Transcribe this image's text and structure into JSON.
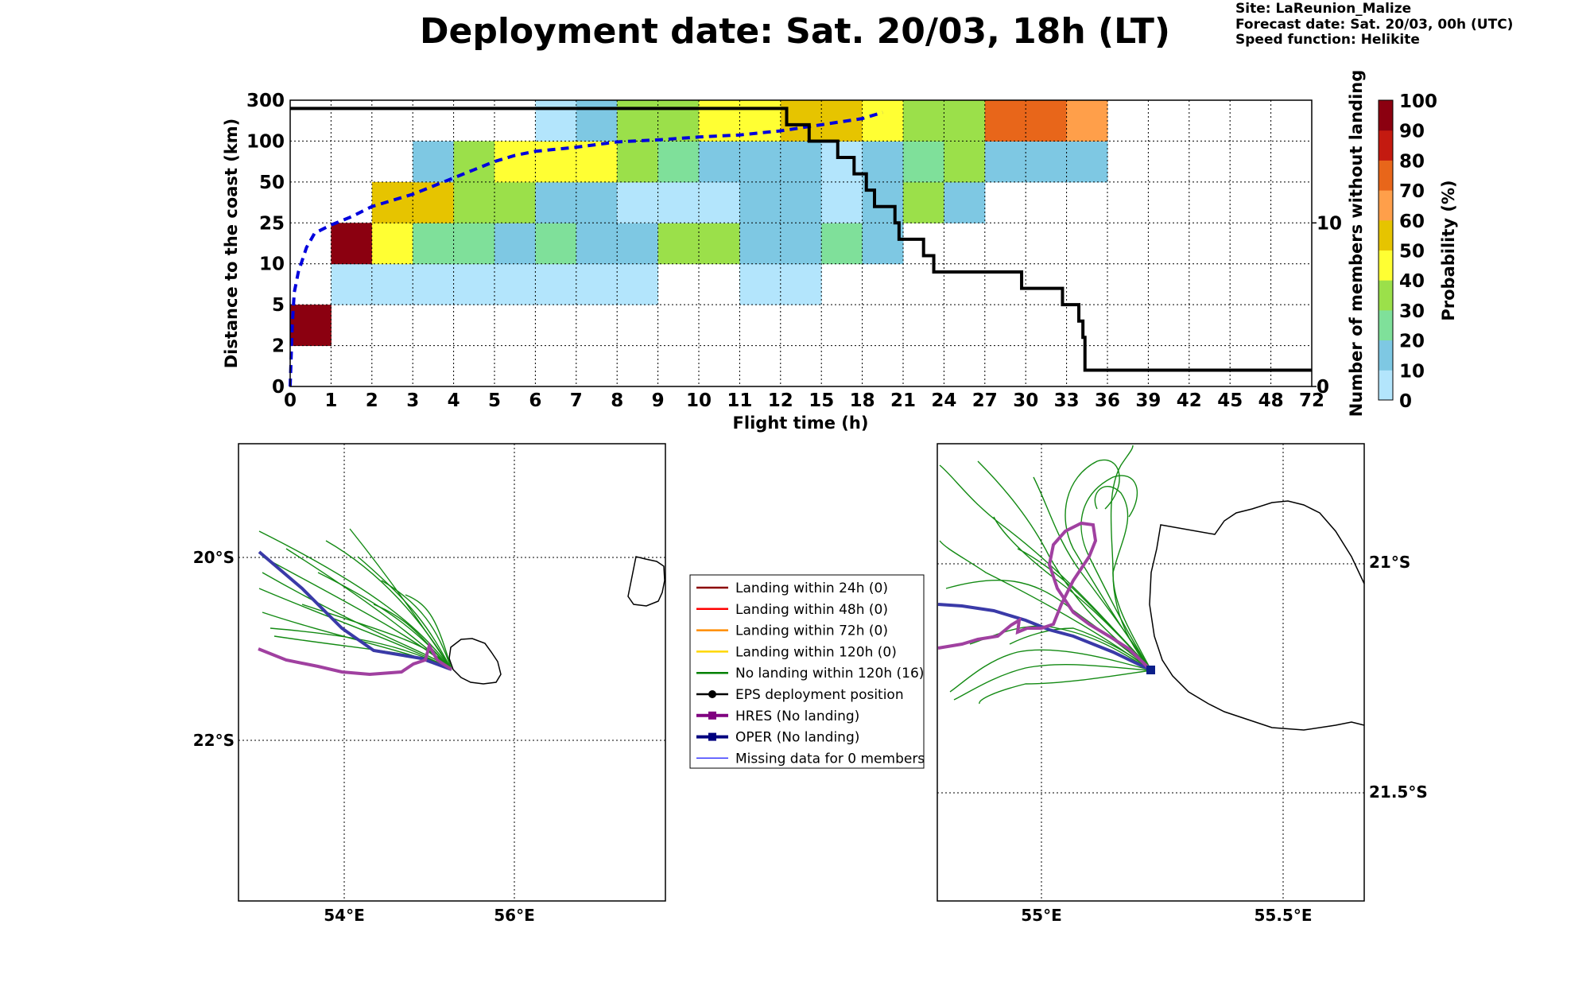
{
  "header": {
    "title": "Deployment date: Sat. 20/03, 18h (LT)",
    "site": "Site: LaReunion_Malize",
    "forecast": "Forecast date: Sat. 20/03, 00h (UTC)",
    "speed": "Speed function: Helikite"
  },
  "chart_data": [
    {
      "type": "heatmap",
      "xlabel": "Flight time (h)",
      "ylabel": "Distance to the coast (km)",
      "y2label": "Number of members without landing",
      "x_ticks": [
        "0",
        "1",
        "2",
        "3",
        "4",
        "5",
        "6",
        "7",
        "8",
        "9",
        "10",
        "11",
        "12",
        "15",
        "18",
        "21",
        "24",
        "27",
        "30",
        "33",
        "36",
        "39",
        "42",
        "45",
        "48",
        "72"
      ],
      "y_ticks": [
        "0",
        "2",
        "5",
        "10",
        "25",
        "50",
        "100",
        "300"
      ],
      "y2_ticks": [
        "0",
        "10"
      ],
      "grid": true,
      "colorbar": {
        "label": "Probability (%)",
        "ticks": [
          "0",
          "10",
          "20",
          "30",
          "40",
          "50",
          "60",
          "70",
          "80",
          "90",
          "100"
        ],
        "colors": [
          "#b3e5fc",
          "#7ec8e3",
          "#7fe09a",
          "#9be04a",
          "#ffff33",
          "#e6c400",
          "#ff9f4a",
          "#e8661a",
          "#c41a10",
          "#8b0010"
        ]
      },
      "cells": [
        {
          "x": 0,
          "y": 1,
          "p": 100
        },
        {
          "x": 1,
          "y": 2,
          "p": 5
        },
        {
          "x": 2,
          "y": 2,
          "p": 5
        },
        {
          "x": 3,
          "y": 2,
          "p": 5
        },
        {
          "x": 4,
          "y": 2,
          "p": 5
        },
        {
          "x": 5,
          "y": 2,
          "p": 5
        },
        {
          "x": 6,
          "y": 2,
          "p": 5
        },
        {
          "x": 7,
          "y": 2,
          "p": 5
        },
        {
          "x": 8,
          "y": 2,
          "p": 5
        },
        {
          "x": 11,
          "y": 2,
          "p": 5
        },
        {
          "x": 12,
          "y": 2,
          "p": 5
        },
        {
          "x": 1,
          "y": 3,
          "p": 100
        },
        {
          "x": 2,
          "y": 3,
          "p": 45
        },
        {
          "x": 3,
          "y": 3,
          "p": 25
        },
        {
          "x": 4,
          "y": 3,
          "p": 25
        },
        {
          "x": 5,
          "y": 3,
          "p": 15
        },
        {
          "x": 6,
          "y": 3,
          "p": 25
        },
        {
          "x": 7,
          "y": 3,
          "p": 15
        },
        {
          "x": 8,
          "y": 3,
          "p": 15
        },
        {
          "x": 9,
          "y": 3,
          "p": 35
        },
        {
          "x": 10,
          "y": 3,
          "p": 35
        },
        {
          "x": 11,
          "y": 3,
          "p": 15
        },
        {
          "x": 12,
          "y": 3,
          "p": 15
        },
        {
          "x": 13,
          "y": 3,
          "p": 25
        },
        {
          "x": 14,
          "y": 3,
          "p": 15
        },
        {
          "x": 2,
          "y": 4,
          "p": 55
        },
        {
          "x": 3,
          "y": 4,
          "p": 55
        },
        {
          "x": 4,
          "y": 4,
          "p": 35
        },
        {
          "x": 5,
          "y": 4,
          "p": 35
        },
        {
          "x": 6,
          "y": 4,
          "p": 15
        },
        {
          "x": 7,
          "y": 4,
          "p": 15
        },
        {
          "x": 8,
          "y": 4,
          "p": 5
        },
        {
          "x": 9,
          "y": 4,
          "p": 5
        },
        {
          "x": 10,
          "y": 4,
          "p": 5
        },
        {
          "x": 11,
          "y": 4,
          "p": 15
        },
        {
          "x": 12,
          "y": 4,
          "p": 15
        },
        {
          "x": 13,
          "y": 4,
          "p": 5
        },
        {
          "x": 14,
          "y": 4,
          "p": 15
        },
        {
          "x": 15,
          "y": 4,
          "p": 35
        },
        {
          "x": 16,
          "y": 4,
          "p": 15
        },
        {
          "x": 3,
          "y": 5,
          "p": 15
        },
        {
          "x": 4,
          "y": 5,
          "p": 35
        },
        {
          "x": 5,
          "y": 5,
          "p": 45
        },
        {
          "x": 6,
          "y": 5,
          "p": 45
        },
        {
          "x": 7,
          "y": 5,
          "p": 45
        },
        {
          "x": 8,
          "y": 5,
          "p": 35
        },
        {
          "x": 9,
          "y": 5,
          "p": 25
        },
        {
          "x": 10,
          "y": 5,
          "p": 15
        },
        {
          "x": 11,
          "y": 5,
          "p": 15
        },
        {
          "x": 12,
          "y": 5,
          "p": 15
        },
        {
          "x": 13,
          "y": 5,
          "p": 5
        },
        {
          "x": 14,
          "y": 5,
          "p": 15
        },
        {
          "x": 15,
          "y": 5,
          "p": 25
        },
        {
          "x": 16,
          "y": 5,
          "p": 35
        },
        {
          "x": 17,
          "y": 5,
          "p": 15
        },
        {
          "x": 18,
          "y": 5,
          "p": 15
        },
        {
          "x": 19,
          "y": 5,
          "p": 15
        },
        {
          "x": 6,
          "y": 6,
          "p": 5
        },
        {
          "x": 7,
          "y": 6,
          "p": 15
        },
        {
          "x": 8,
          "y": 6,
          "p": 35
        },
        {
          "x": 9,
          "y": 6,
          "p": 35
        },
        {
          "x": 10,
          "y": 6,
          "p": 45
        },
        {
          "x": 11,
          "y": 6,
          "p": 45
        },
        {
          "x": 12,
          "y": 6,
          "p": 55
        },
        {
          "x": 13,
          "y": 6,
          "p": 55
        },
        {
          "x": 14,
          "y": 6,
          "p": 45
        },
        {
          "x": 15,
          "y": 6,
          "p": 35
        },
        {
          "x": 16,
          "y": 6,
          "p": 35
        },
        {
          "x": 17,
          "y": 6,
          "p": 75
        },
        {
          "x": 18,
          "y": 6,
          "p": 75
        },
        {
          "x": 19,
          "y": 6,
          "p": 65
        }
      ],
      "series": [
        {
          "name": "median distance",
          "style": "blue dashed",
          "points": [
            [
              0,
              0
            ],
            [
              0.05,
              1.5
            ],
            [
              0.1,
              2.3
            ],
            [
              0.2,
              2.8
            ],
            [
              0.4,
              3.4
            ],
            [
              0.6,
              3.75
            ],
            [
              1.0,
              3.95
            ],
            [
              1.5,
              4.15
            ],
            [
              2.0,
              4.4
            ],
            [
              2.5,
              4.55
            ],
            [
              3.0,
              4.7
            ],
            [
              3.5,
              4.9
            ],
            [
              4.0,
              5.1
            ],
            [
              4.5,
              5.3
            ],
            [
              5.0,
              5.5
            ],
            [
              5.5,
              5.65
            ],
            [
              6.0,
              5.75
            ],
            [
              7.0,
              5.85
            ],
            [
              8.0,
              5.98
            ],
            [
              9.0,
              6.03
            ],
            [
              10.0,
              6.1
            ],
            [
              11.0,
              6.15
            ],
            [
              12.0,
              6.25
            ],
            [
              13.0,
              6.4
            ],
            [
              14.0,
              6.55
            ],
            [
              14.5,
              6.7
            ]
          ]
        },
        {
          "name": "members without landing",
          "style": "black step",
          "points": [
            [
              0,
              17
            ],
            [
              12.15,
              17
            ],
            [
              12.15,
              16
            ],
            [
              12.7,
              16
            ],
            [
              12.7,
              15
            ],
            [
              13.4,
              15
            ],
            [
              13.4,
              14
            ],
            [
              13.8,
              14
            ],
            [
              13.8,
              13
            ],
            [
              14.1,
              13
            ],
            [
              14.1,
              12
            ],
            [
              14.3,
              12
            ],
            [
              14.3,
              11
            ],
            [
              14.8,
              11
            ],
            [
              14.8,
              10
            ],
            [
              14.9,
              10
            ],
            [
              14.9,
              9
            ],
            [
              15.5,
              9
            ],
            [
              15.5,
              8
            ],
            [
              15.75,
              8
            ],
            [
              15.75,
              7
            ],
            [
              17.9,
              7
            ],
            [
              17.9,
              6
            ],
            [
              18.9,
              6
            ],
            [
              18.9,
              5
            ],
            [
              19.3,
              5
            ],
            [
              19.3,
              4
            ],
            [
              19.4,
              4
            ],
            [
              19.4,
              3
            ],
            [
              19.45,
              3
            ],
            [
              19.45,
              1
            ],
            [
              25,
              1
            ]
          ]
        }
      ]
    },
    {
      "type": "map",
      "x_ticks": [
        "54°E",
        "56°E"
      ],
      "y_ticks": [
        "20°S",
        "22°S"
      ],
      "grid": true
    },
    {
      "type": "map",
      "x_ticks": [
        "55°E",
        "55.5°E"
      ],
      "y_ticks": [
        "21°S",
        "21.5°S"
      ],
      "grid": true
    }
  ],
  "legend": [
    {
      "label": "Landing within 24h (0)",
      "color": "#8b0000",
      "marker": "line"
    },
    {
      "label": "Landing within 48h (0)",
      "color": "#ff0000",
      "marker": "line"
    },
    {
      "label": "Landing within 72h (0)",
      "color": "#ff8c00",
      "marker": "line"
    },
    {
      "label": "Landing within 120h (0)",
      "color": "#ffd700",
      "marker": "line"
    },
    {
      "label": "No landing within 120h (16)",
      "color": "#008000",
      "marker": "line"
    },
    {
      "label": "EPS deployment position",
      "color": "#000000",
      "marker": "dot"
    },
    {
      "label": "HRES (No landing)",
      "color": "#800080",
      "marker": "square"
    },
    {
      "label": "OPER (No landing)",
      "color": "#00007f",
      "marker": "square"
    },
    {
      "label": "Missing data for 0 members",
      "color": "#3333ff",
      "marker": "thin"
    }
  ]
}
